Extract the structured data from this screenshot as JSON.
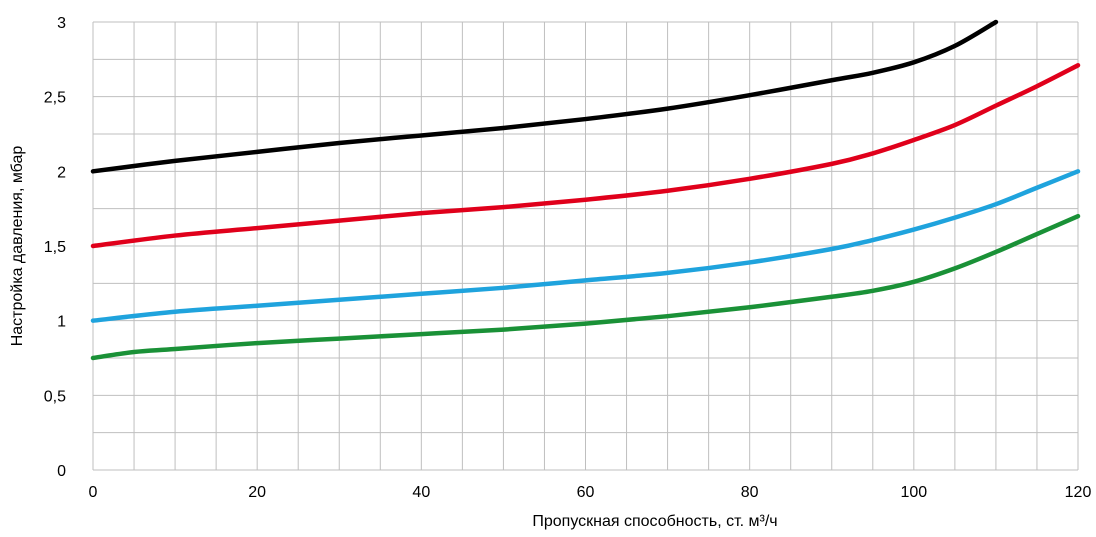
{
  "chart_data": {
    "type": "line",
    "xlabel": "Пропускная способность, ст. м³/ч",
    "ylabel": "Настройка давления, мбар",
    "xlim": [
      0,
      120
    ],
    "ylim": [
      0,
      3
    ],
    "x_ticks": [
      0,
      20,
      40,
      60,
      80,
      100,
      120
    ],
    "x_tick_labels": [
      "0",
      "20",
      "40",
      "60",
      "80",
      "100",
      "120"
    ],
    "y_ticks": [
      0,
      0.5,
      1,
      1.5,
      2,
      2.5,
      3
    ],
    "y_tick_labels": [
      "0",
      "0,5",
      "1",
      "1,5",
      "2",
      "2,5",
      "3"
    ],
    "x_minor_step": 5,
    "y_minor_step": 0.25,
    "grid": true,
    "legend": false,
    "series": [
      {
        "color": "#000000",
        "x": [
          0,
          10,
          20,
          30,
          40,
          50,
          60,
          70,
          80,
          90,
          95,
          100,
          105,
          110
        ],
        "y": [
          2.0,
          2.07,
          2.13,
          2.19,
          2.24,
          2.29,
          2.35,
          2.42,
          2.51,
          2.61,
          2.66,
          2.73,
          2.84,
          3.0
        ]
      },
      {
        "color": "#e0001b",
        "x": [
          0,
          10,
          20,
          30,
          40,
          50,
          60,
          70,
          80,
          90,
          95,
          100,
          105,
          110,
          115,
          120
        ],
        "y": [
          1.5,
          1.57,
          1.62,
          1.67,
          1.72,
          1.76,
          1.81,
          1.87,
          1.95,
          2.05,
          2.12,
          2.21,
          2.31,
          2.44,
          2.57,
          2.71
        ]
      },
      {
        "color": "#1fa3dd",
        "x": [
          0,
          10,
          20,
          30,
          40,
          50,
          60,
          70,
          80,
          90,
          95,
          100,
          105,
          110,
          115,
          120
        ],
        "y": [
          1.0,
          1.06,
          1.1,
          1.14,
          1.18,
          1.22,
          1.27,
          1.32,
          1.39,
          1.48,
          1.54,
          1.61,
          1.69,
          1.78,
          1.89,
          2.0
        ]
      },
      {
        "color": "#1a9137",
        "x": [
          0,
          5,
          10,
          20,
          30,
          40,
          50,
          60,
          70,
          80,
          90,
          95,
          100,
          105,
          110,
          115,
          120
        ],
        "y": [
          0.75,
          0.79,
          0.81,
          0.85,
          0.88,
          0.91,
          0.94,
          0.98,
          1.03,
          1.09,
          1.16,
          1.2,
          1.26,
          1.35,
          1.46,
          1.58,
          1.7
        ]
      }
    ]
  }
}
